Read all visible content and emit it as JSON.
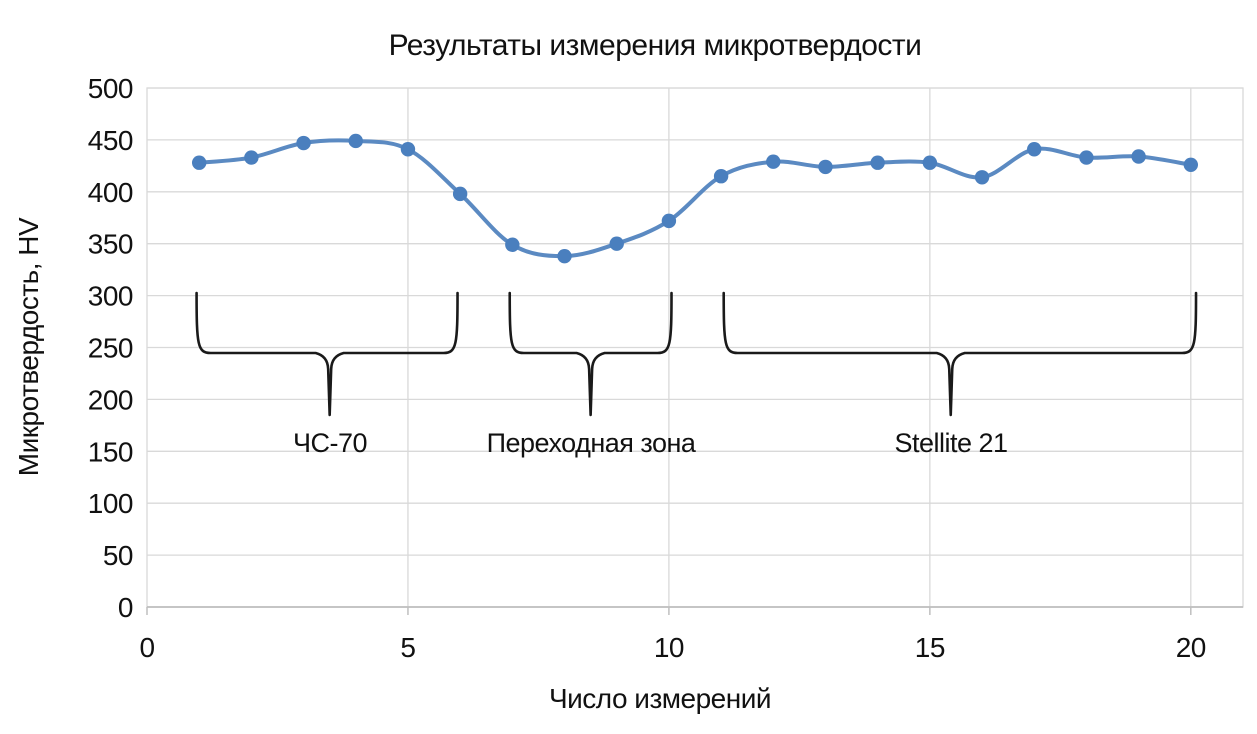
{
  "chart_data": {
    "type": "line",
    "title": "Результаты измерения микротвердости",
    "xlabel": "Число измерений",
    "ylabel": "Микротвердость, HV",
    "x": [
      1,
      2,
      3,
      4,
      5,
      6,
      7,
      8,
      9,
      10,
      11,
      12,
      13,
      14,
      15,
      16,
      17,
      18,
      19,
      20
    ],
    "values": [
      428,
      433,
      447,
      449,
      441,
      398,
      349,
      338,
      350,
      372,
      415,
      429,
      424,
      428,
      428,
      414,
      441,
      433,
      434,
      426
    ],
    "ylim": [
      0,
      500
    ],
    "xlim": [
      0,
      21
    ],
    "y_ticks": [
      0,
      50,
      100,
      150,
      200,
      250,
      300,
      350,
      400,
      450,
      500
    ],
    "x_ticks": [
      0,
      5,
      10,
      15,
      20
    ],
    "x_gridlines": [
      5,
      10,
      15,
      20
    ],
    "grid": true,
    "legend": "none",
    "line_color": "#5b8ac2",
    "marker_color": "#4a7fbe",
    "gridline_color": "#d9d9d9",
    "axis_line_color": "#bfbfbf",
    "brace_color": "#1a1a1a",
    "annotations": [
      {
        "label": "ЧС-70",
        "x_start": 0.95,
        "x_end": 5.95,
        "x_pointer": 3.5
      },
      {
        "label": "Переходная зона",
        "x_start": 6.95,
        "x_end": 10.05,
        "x_pointer": 8.5
      },
      {
        "label": "Stellite 21",
        "x_start": 11.05,
        "x_end": 20.1,
        "x_pointer": 15.4
      }
    ]
  }
}
